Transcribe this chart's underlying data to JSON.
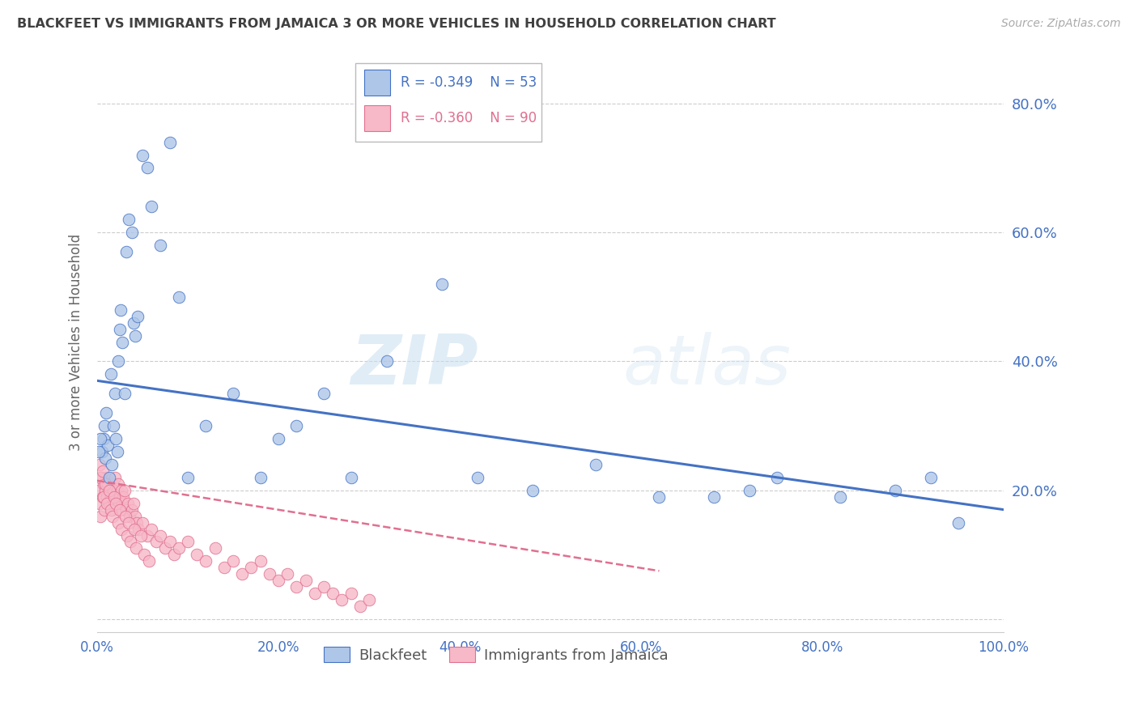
{
  "title": "BLACKFEET VS IMMIGRANTS FROM JAMAICA 3 OR MORE VEHICLES IN HOUSEHOLD CORRELATION CHART",
  "source": "Source: ZipAtlas.com",
  "ylabel": "3 or more Vehicles in Household",
  "legend_label1": "Blackfeet",
  "legend_label2": "Immigrants from Jamaica",
  "R1": -0.349,
  "N1": 53,
  "R2": -0.36,
  "N2": 90,
  "blue_color": "#aec6e8",
  "pink_color": "#f7b8c8",
  "line_blue": "#4472c4",
  "line_pink": "#e07090",
  "text_blue": "#4472c4",
  "title_color": "#404040",
  "source_color": "#aaaaaa",
  "grid_color": "#cccccc",
  "watermark_zip": "ZIP",
  "watermark_atlas": "atlas",
  "blue_scatter_x": [
    0.005,
    0.007,
    0.008,
    0.009,
    0.01,
    0.012,
    0.013,
    0.015,
    0.016,
    0.018,
    0.02,
    0.021,
    0.022,
    0.023,
    0.025,
    0.026,
    0.028,
    0.03,
    0.032,
    0.035,
    0.038,
    0.04,
    0.042,
    0.045,
    0.05,
    0.055,
    0.06,
    0.07,
    0.08,
    0.09,
    0.1,
    0.12,
    0.15,
    0.18,
    0.2,
    0.22,
    0.25,
    0.28,
    0.32,
    0.38,
    0.42,
    0.48,
    0.55,
    0.62,
    0.68,
    0.72,
    0.75,
    0.82,
    0.88,
    0.92,
    0.95,
    0.002,
    0.004
  ],
  "blue_scatter_y": [
    0.26,
    0.28,
    0.3,
    0.25,
    0.32,
    0.27,
    0.22,
    0.38,
    0.24,
    0.3,
    0.35,
    0.28,
    0.26,
    0.4,
    0.45,
    0.48,
    0.43,
    0.35,
    0.57,
    0.62,
    0.6,
    0.46,
    0.44,
    0.47,
    0.72,
    0.7,
    0.64,
    0.58,
    0.74,
    0.5,
    0.22,
    0.3,
    0.35,
    0.22,
    0.28,
    0.3,
    0.35,
    0.22,
    0.4,
    0.52,
    0.22,
    0.2,
    0.24,
    0.19,
    0.19,
    0.2,
    0.22,
    0.19,
    0.2,
    0.22,
    0.15,
    0.26,
    0.28
  ],
  "pink_scatter_x": [
    0.002,
    0.003,
    0.004,
    0.005,
    0.006,
    0.007,
    0.008,
    0.009,
    0.01,
    0.011,
    0.012,
    0.013,
    0.014,
    0.015,
    0.016,
    0.017,
    0.018,
    0.019,
    0.02,
    0.021,
    0.022,
    0.023,
    0.024,
    0.025,
    0.026,
    0.027,
    0.028,
    0.029,
    0.03,
    0.032,
    0.034,
    0.036,
    0.038,
    0.04,
    0.042,
    0.044,
    0.046,
    0.05,
    0.055,
    0.06,
    0.065,
    0.07,
    0.075,
    0.08,
    0.085,
    0.09,
    0.1,
    0.11,
    0.12,
    0.13,
    0.14,
    0.15,
    0.16,
    0.17,
    0.18,
    0.19,
    0.2,
    0.21,
    0.22,
    0.23,
    0.24,
    0.25,
    0.26,
    0.27,
    0.28,
    0.29,
    0.3,
    0.003,
    0.004,
    0.006,
    0.007,
    0.009,
    0.011,
    0.013,
    0.015,
    0.017,
    0.019,
    0.021,
    0.023,
    0.025,
    0.027,
    0.031,
    0.033,
    0.035,
    0.037,
    0.041,
    0.043,
    0.048,
    0.052,
    0.057
  ],
  "pink_scatter_y": [
    0.2,
    0.18,
    0.16,
    0.22,
    0.19,
    0.21,
    0.17,
    0.2,
    0.22,
    0.19,
    0.21,
    0.18,
    0.2,
    0.19,
    0.17,
    0.21,
    0.2,
    0.18,
    0.22,
    0.19,
    0.2,
    0.21,
    0.18,
    0.19,
    0.17,
    0.2,
    0.18,
    0.19,
    0.2,
    0.17,
    0.18,
    0.16,
    0.17,
    0.18,
    0.16,
    0.15,
    0.14,
    0.15,
    0.13,
    0.14,
    0.12,
    0.13,
    0.11,
    0.12,
    0.1,
    0.11,
    0.12,
    0.1,
    0.09,
    0.11,
    0.08,
    0.09,
    0.07,
    0.08,
    0.09,
    0.07,
    0.06,
    0.07,
    0.05,
    0.06,
    0.04,
    0.05,
    0.04,
    0.03,
    0.04,
    0.02,
    0.03,
    0.24,
    0.22,
    0.23,
    0.19,
    0.21,
    0.18,
    0.2,
    0.17,
    0.16,
    0.19,
    0.18,
    0.15,
    0.17,
    0.14,
    0.16,
    0.13,
    0.15,
    0.12,
    0.14,
    0.11,
    0.13,
    0.1,
    0.09
  ],
  "blue_line_x": [
    0.0,
    1.0
  ],
  "blue_line_y": [
    0.37,
    0.17
  ],
  "pink_line_x": [
    0.0,
    0.62
  ],
  "pink_line_y": [
    0.215,
    0.075
  ],
  "xlim": [
    0.0,
    1.0
  ],
  "ylim": [
    -0.02,
    0.88
  ],
  "yticks": [
    0.0,
    0.2,
    0.4,
    0.6,
    0.8
  ],
  "ytick_labels": [
    "",
    "20.0%",
    "40.0%",
    "60.0%",
    "80.0%"
  ],
  "xticks": [
    0.0,
    0.2,
    0.4,
    0.6,
    0.8,
    1.0
  ],
  "xtick_labels": [
    "0.0%",
    "20.0%",
    "40.0%",
    "60.0%",
    "80.0%",
    "100.0%"
  ]
}
